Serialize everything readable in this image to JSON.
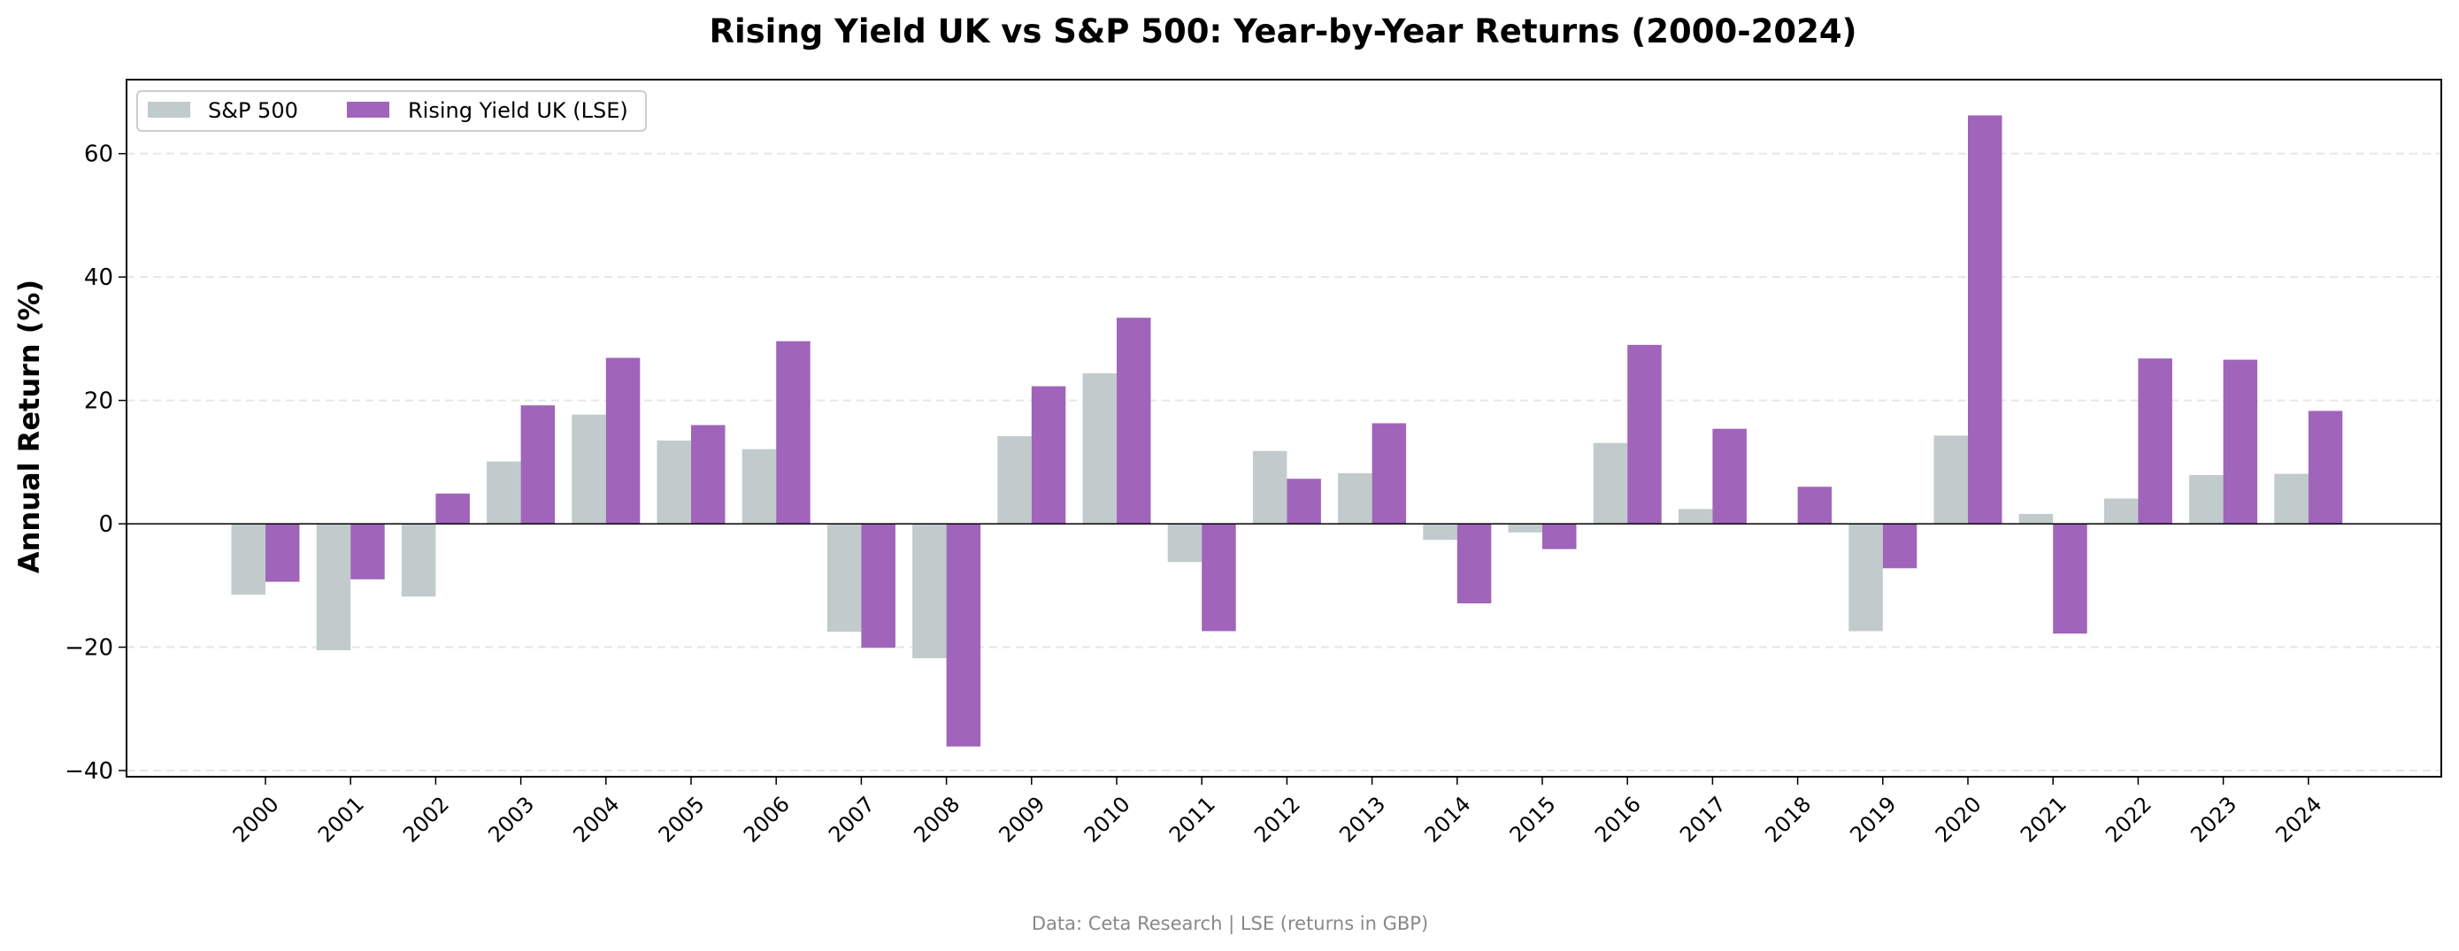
{
  "chart_data": {
    "type": "bar",
    "title": "Rising Yield UK vs S&P 500: Year-by-Year Returns (2000-2024)",
    "xlabel": "",
    "ylabel": "Annual Return (%)",
    "ylim": [
      -41,
      72
    ],
    "yticks": [
      -40,
      -20,
      0,
      20,
      40,
      60
    ],
    "ytick_labels": [
      "−40",
      "−20",
      "0",
      "20",
      "40",
      "60"
    ],
    "grid": "horizontal dashed",
    "legend_position": "top-left",
    "categories": [
      "2000",
      "2001",
      "2002",
      "2003",
      "2004",
      "2005",
      "2006",
      "2007",
      "2008",
      "2009",
      "2010",
      "2011",
      "2012",
      "2013",
      "2014",
      "2015",
      "2016",
      "2017",
      "2018",
      "2019",
      "2020",
      "2021",
      "2022",
      "2023",
      "2024"
    ],
    "series": [
      {
        "name": "S&P 500",
        "color": "#c2cbcb",
        "values": [
          -11.5,
          -20.5,
          -11.8,
          10.1,
          17.7,
          13.5,
          12.1,
          -17.5,
          -21.8,
          14.2,
          24.4,
          -6.2,
          11.8,
          8.2,
          -2.6,
          -1.4,
          13.1,
          2.4,
          0.0,
          -17.4,
          14.3,
          1.6,
          4.1,
          7.9,
          8.1
        ]
      },
      {
        "name": "Rising Yield UK (LSE)",
        "color": "#a064bb",
        "values": [
          -9.4,
          -9.0,
          4.9,
          19.2,
          26.9,
          16.0,
          29.6,
          -20.1,
          -36.1,
          22.3,
          33.4,
          -17.4,
          7.3,
          16.3,
          -12.9,
          -4.1,
          29.0,
          15.4,
          6.0,
          -7.2,
          66.2,
          -17.8,
          26.8,
          26.6,
          18.3
        ]
      }
    ]
  },
  "source_note": "Data: Ceta Research | LSE (returns in GBP)"
}
